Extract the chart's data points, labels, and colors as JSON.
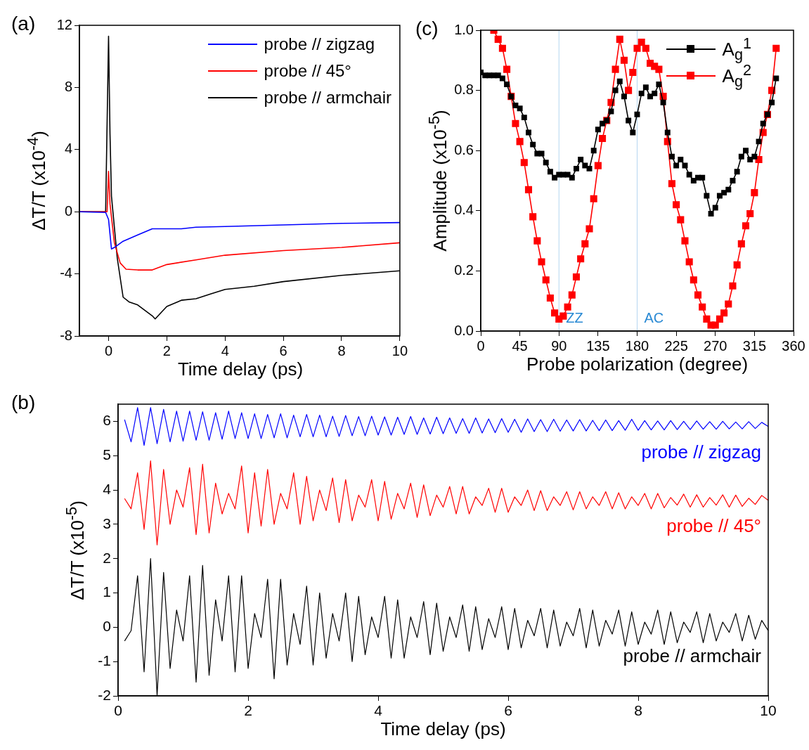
{
  "chart_data": [
    {
      "type": "line",
      "title": "(a)",
      "xlabel": "Time delay (ps)",
      "ylabel": "ΔT/T (x10$^{-4}$)",
      "xlim": [
        -1,
        10
      ],
      "xticks": [
        0,
        2,
        4,
        6,
        8,
        10
      ],
      "ylim": [
        -8,
        12
      ],
      "yticks": [
        -8,
        -4,
        0,
        4,
        8,
        12
      ],
      "grid": false,
      "legend": "top right",
      "marker": "none",
      "line_style": "solid",
      "series": [
        {
          "name": "probe // zigzag",
          "color": "#0000ff",
          "x": [
            -1,
            -0.1,
            0,
            0.1,
            0.2,
            0.5,
            1,
            1.5,
            2,
            2.5,
            3,
            4,
            6,
            8,
            10
          ],
          "values": [
            0,
            -0.05,
            -0.5,
            -2.4,
            -2.3,
            -1.9,
            -1.5,
            -1.1,
            -1.1,
            -1.1,
            -1.0,
            -0.95,
            -0.85,
            -0.75,
            -0.7
          ]
        },
        {
          "name": "probe // 45°",
          "color": "#ff0000",
          "x": [
            -1,
            -0.05,
            0,
            0.05,
            0.2,
            0.4,
            0.6,
            1,
            1.5,
            2,
            3,
            4,
            6,
            8,
            10
          ],
          "values": [
            0,
            0,
            2.6,
            0.5,
            -2.0,
            -3.3,
            -3.7,
            -3.75,
            -3.75,
            -3.4,
            -3.1,
            -2.8,
            -2.5,
            -2.3,
            -2.0
          ]
        },
        {
          "name": "probe // armchair",
          "color": "#000000",
          "x": [
            -1,
            -0.1,
            0,
            0.05,
            0.1,
            0.3,
            0.5,
            0.7,
            1,
            1.5,
            1.6,
            2,
            2.5,
            3,
            3.5,
            4,
            5,
            6,
            8,
            10
          ],
          "values": [
            0,
            0,
            11.3,
            5,
            1,
            -3.0,
            -5.5,
            -5.8,
            -6.0,
            -6.7,
            -6.9,
            -6.1,
            -5.7,
            -5.6,
            -5.3,
            -5.0,
            -4.8,
            -4.5,
            -4.1,
            -3.8
          ]
        }
      ]
    },
    {
      "type": "line",
      "title": "(c)",
      "xlabel": "Probe polarization (degree)",
      "ylabel": "Amplitude (x10$^{-5}$)",
      "xlim": [
        0,
        360
      ],
      "xticks": [
        0,
        45,
        90,
        135,
        180,
        225,
        270,
        315,
        360
      ],
      "ylim": [
        0,
        1
      ],
      "yticks": [
        {
          "value": 0,
          "label": "0.0"
        },
        {
          "value": 0.2,
          "label": "0.2"
        },
        {
          "value": 0.4,
          "label": "0.4"
        },
        {
          "value": 0.6,
          "label": "0.6"
        },
        {
          "value": 0.8,
          "label": "0.8"
        },
        {
          "value": 1,
          "label": "1.0"
        }
      ],
      "grid": false,
      "legend": "top right",
      "marker": "square",
      "line_style": "solid",
      "ref_lines": [
        {
          "axis": "x",
          "value": 90,
          "label": "ZZ",
          "color": "#2a8ad4"
        },
        {
          "axis": "x",
          "value": 180,
          "label": "AC",
          "color": "#2a8ad4"
        }
      ],
      "series": [
        {
          "name": "A$_{g}$$^{1}$",
          "color": "#000000",
          "x": [
            0,
            5,
            10,
            15,
            20,
            25,
            30,
            35,
            40,
            45,
            50,
            55,
            60,
            65,
            70,
            75,
            80,
            85,
            90,
            95,
            100,
            105,
            110,
            115,
            120,
            125,
            130,
            135,
            140,
            145,
            150,
            155,
            160,
            165,
            170,
            175,
            180,
            185,
            190,
            195,
            200,
            205,
            210,
            215,
            220,
            225,
            230,
            235,
            240,
            245,
            250,
            255,
            260,
            265,
            270,
            275,
            280,
            285,
            290,
            295,
            300,
            305,
            310,
            315,
            320,
            325,
            330,
            335,
            340
          ],
          "values": [
            0.86,
            0.85,
            0.85,
            0.85,
            0.85,
            0.84,
            0.82,
            0.78,
            0.75,
            0.74,
            0.71,
            0.66,
            0.62,
            0.59,
            0.59,
            0.56,
            0.53,
            0.51,
            0.52,
            0.52,
            0.52,
            0.51,
            0.54,
            0.57,
            0.55,
            0.54,
            0.6,
            0.67,
            0.69,
            0.7,
            0.73,
            0.8,
            0.83,
            0.78,
            0.7,
            0.66,
            0.72,
            0.79,
            0.81,
            0.78,
            0.79,
            0.82,
            0.76,
            0.66,
            0.58,
            0.55,
            0.57,
            0.55,
            0.52,
            0.5,
            0.51,
            0.51,
            0.45,
            0.39,
            0.41,
            0.45,
            0.46,
            0.47,
            0.5,
            0.53,
            0.58,
            0.6,
            0.57,
            0.58,
            0.63,
            0.69,
            0.72,
            0.76,
            0.84
          ]
        },
        {
          "name": "A$_{g}$$^{2}$",
          "color": "#ff0000",
          "x": [
            15,
            20,
            25,
            30,
            35,
            40,
            45,
            50,
            55,
            60,
            65,
            70,
            75,
            80,
            85,
            90,
            95,
            100,
            105,
            110,
            115,
            120,
            125,
            130,
            135,
            140,
            145,
            150,
            155,
            160,
            165,
            170,
            175,
            180,
            185,
            190,
            195,
            200,
            205,
            210,
            215,
            220,
            225,
            230,
            235,
            240,
            245,
            250,
            255,
            260,
            265,
            270,
            275,
            280,
            285,
            290,
            295,
            300,
            305,
            310,
            315,
            320,
            325,
            330,
            335,
            340
          ],
          "values": [
            1.0,
            0.97,
            0.94,
            0.87,
            0.78,
            0.69,
            0.63,
            0.56,
            0.47,
            0.38,
            0.3,
            0.23,
            0.17,
            0.11,
            0.06,
            0.04,
            0.05,
            0.08,
            0.12,
            0.18,
            0.24,
            0.29,
            0.34,
            0.44,
            0.55,
            0.64,
            0.7,
            0.76,
            0.87,
            0.97,
            0.9,
            0.8,
            0.86,
            0.94,
            0.96,
            0.94,
            0.89,
            0.88,
            0.87,
            0.78,
            0.63,
            0.49,
            0.42,
            0.37,
            0.3,
            0.23,
            0.17,
            0.12,
            0.08,
            0.04,
            0.02,
            0.02,
            0.04,
            0.06,
            0.09,
            0.15,
            0.22,
            0.29,
            0.35,
            0.39,
            0.46,
            0.57,
            0.66,
            0.72,
            0.8,
            0.94
          ]
        }
      ]
    },
    {
      "type": "line",
      "title": "(b)",
      "xlabel": "Time delay (ps)",
      "ylabel": "ΔT/T (x10$^{-5}$)",
      "xlim": [
        0,
        10
      ],
      "xticks": [
        0,
        2,
        4,
        6,
        8,
        10
      ],
      "ylim": [
        -2,
        6.5
      ],
      "yticks": [
        -2,
        -1,
        0,
        1,
        2,
        3,
        4,
        5,
        6
      ],
      "grid": false,
      "legend": false,
      "marker": "none",
      "line_style": "solid",
      "x": [
        0.1,
        0.2,
        0.3,
        0.4,
        0.5,
        0.6,
        0.7,
        0.8,
        0.9,
        1.0,
        1.1,
        1.2,
        1.3,
        1.4,
        1.5,
        1.6,
        1.7,
        1.8,
        1.9,
        2.0,
        2.1,
        2.2,
        2.3,
        2.4,
        2.5,
        2.6,
        2.7,
        2.8,
        2.9,
        3.0,
        3.1,
        3.2,
        3.3,
        3.4,
        3.5,
        3.6,
        3.7,
        3.8,
        3.9,
        4.0,
        4.1,
        4.2,
        4.3,
        4.4,
        4.5,
        4.6,
        4.7,
        4.8,
        4.9,
        5.0,
        5.1,
        5.2,
        5.3,
        5.4,
        5.5,
        5.6,
        5.7,
        5.8,
        5.9,
        6.0,
        6.1,
        6.2,
        6.3,
        6.4,
        6.5,
        6.6,
        6.7,
        6.8,
        6.9,
        7.0,
        7.1,
        7.2,
        7.3,
        7.4,
        7.5,
        7.6,
        7.7,
        7.8,
        7.9,
        8.0,
        8.1,
        8.2,
        8.3,
        8.4,
        8.5,
        8.6,
        8.7,
        8.8,
        8.9,
        9.0,
        9.1,
        9.2,
        9.3,
        9.4,
        9.5,
        9.6,
        9.7,
        9.8,
        9.9,
        10.0
      ],
      "series": [
        {
          "name": "probe // zigzag",
          "color": "#0000ff",
          "values": [
            6.05,
            5.4,
            6.4,
            5.3,
            6.4,
            5.35,
            6.35,
            5.4,
            6.3,
            5.42,
            6.3,
            5.45,
            6.28,
            5.45,
            6.25,
            5.48,
            6.3,
            5.5,
            6.25,
            5.5,
            6.22,
            5.5,
            6.2,
            5.52,
            6.22,
            5.52,
            6.18,
            5.55,
            6.2,
            5.55,
            6.18,
            5.55,
            6.15,
            5.56,
            6.17,
            5.58,
            6.14,
            5.58,
            6.15,
            5.6,
            6.13,
            5.6,
            6.12,
            5.62,
            6.14,
            5.62,
            6.1,
            5.63,
            6.12,
            5.64,
            6.1,
            5.65,
            6.08,
            5.65,
            6.1,
            5.66,
            6.07,
            5.67,
            6.08,
            5.68,
            6.06,
            5.68,
            6.07,
            5.7,
            6.05,
            5.7,
            6.06,
            5.71,
            6.04,
            5.72,
            6.05,
            5.72,
            6.03,
            5.73,
            6.04,
            5.73,
            6.02,
            5.74,
            6.06,
            5.74,
            6.02,
            5.75,
            6.01,
            5.75,
            6.02,
            5.76,
            6.0,
            5.76,
            6.01,
            5.77,
            5.99,
            5.77,
            6.0,
            5.78,
            5.98,
            5.78,
            5.99,
            5.79,
            5.97,
            5.85
          ]
        },
        {
          "name": "probe // 45°",
          "color": "#ff0000",
          "values": [
            3.75,
            3.45,
            4.5,
            2.85,
            4.85,
            2.4,
            4.6,
            3.0,
            4.0,
            3.5,
            4.65,
            2.7,
            4.75,
            2.75,
            4.2,
            3.3,
            3.9,
            3.45,
            4.7,
            2.75,
            4.5,
            2.95,
            4.6,
            3.0,
            3.9,
            3.45,
            4.5,
            3.0,
            4.4,
            3.1,
            4.0,
            3.4,
            4.35,
            3.05,
            4.3,
            3.1,
            3.85,
            3.5,
            4.3,
            3.1,
            4.25,
            3.15,
            3.9,
            3.45,
            4.2,
            3.2,
            4.15,
            3.25,
            3.85,
            3.5,
            4.1,
            3.3,
            4.1,
            3.3,
            3.8,
            3.55,
            4.05,
            3.35,
            4.05,
            3.35,
            3.8,
            3.55,
            4.0,
            3.4,
            3.98,
            3.4,
            3.8,
            3.55,
            3.95,
            3.42,
            3.95,
            3.45,
            3.8,
            3.55,
            3.95,
            3.45,
            3.92,
            3.45,
            3.8,
            3.55,
            3.9,
            3.45,
            3.9,
            3.48,
            3.78,
            3.56,
            3.88,
            3.5,
            3.86,
            3.5,
            3.78,
            3.56,
            3.86,
            3.5,
            3.85,
            3.52,
            3.76,
            3.58,
            3.84,
            3.7
          ]
        },
        {
          "name": "probe // armchair",
          "color": "#000000",
          "values": [
            -0.4,
            -0.1,
            1.5,
            -1.3,
            2.0,
            -2.0,
            1.6,
            -1.2,
            0.5,
            -0.4,
            1.5,
            -1.6,
            1.8,
            -1.4,
            0.8,
            -0.4,
            1.5,
            -1.3,
            1.5,
            -1.2,
            0.4,
            -0.3,
            1.4,
            -1.5,
            1.4,
            -1.1,
            0.4,
            -0.5,
            1.2,
            -1.1,
            1.0,
            -0.9,
            0.4,
            -0.4,
            1.0,
            -1.0,
            0.9,
            -0.8,
            0.3,
            -0.3,
            0.9,
            -0.9,
            0.8,
            -0.9,
            0.3,
            -0.3,
            0.75,
            -0.8,
            0.7,
            -0.7,
            0.3,
            -0.3,
            0.65,
            -0.7,
            0.6,
            -0.65,
            0.25,
            -0.3,
            0.6,
            -0.65,
            0.55,
            -0.6,
            0.2,
            -0.25,
            0.55,
            -0.6,
            0.5,
            -0.55,
            0.15,
            -0.25,
            0.55,
            -0.6,
            0.5,
            -0.55,
            0.2,
            -0.2,
            0.5,
            -0.55,
            0.45,
            -0.5,
            0.15,
            -0.2,
            0.5,
            -0.5,
            0.45,
            -0.45,
            0.15,
            -0.15,
            0.45,
            -0.45,
            0.4,
            -0.4,
            0.15,
            -0.15,
            0.4,
            -0.4,
            0.35,
            -0.35,
            0.2,
            -0.1
          ]
        }
      ]
    }
  ]
}
